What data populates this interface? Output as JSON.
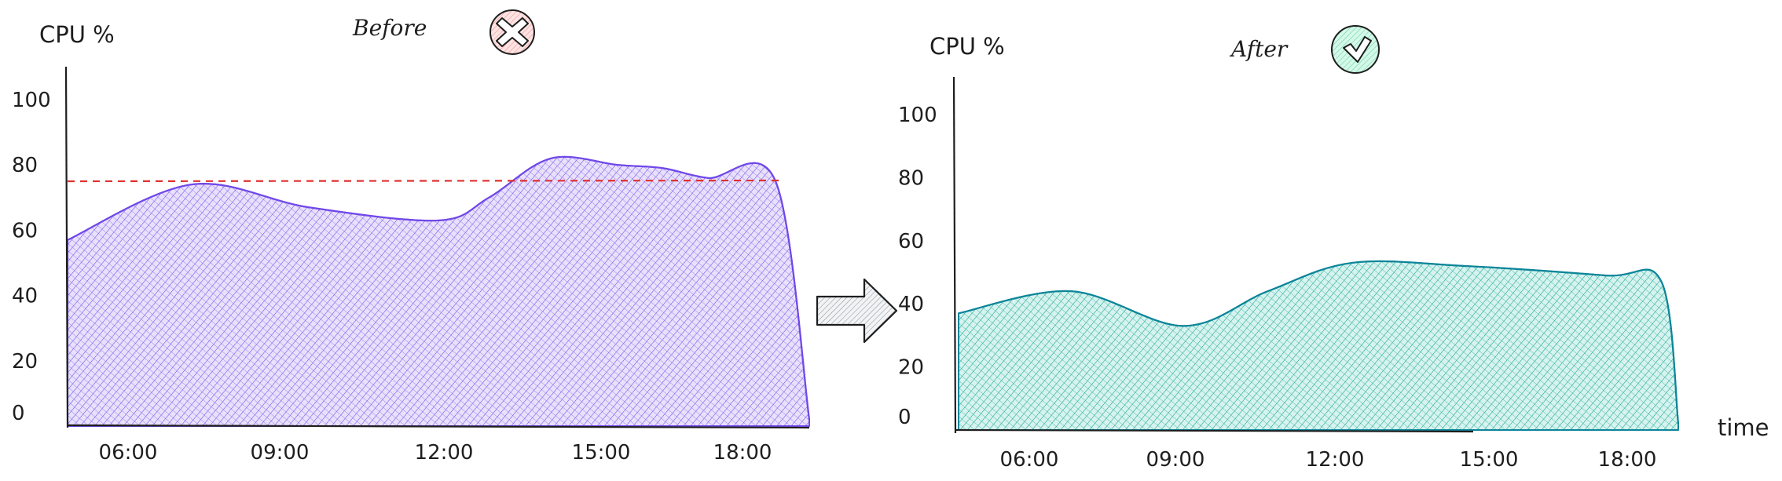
{
  "chart_data": [
    {
      "type": "area",
      "title": "Before",
      "ylabel": "CPU %",
      "xlabel": "",
      "ylim": [
        0,
        110
      ],
      "y_ticks": [
        "0",
        "20",
        "40",
        "60",
        "80",
        "100"
      ],
      "x_ticks": [
        "06:00",
        "09:00",
        "12:00",
        "15:00",
        "18:00"
      ],
      "grid": false,
      "series": [
        {
          "color": "#7048e8",
          "x": [
            0,
            2.2,
            4.3,
            6.6,
            7.5,
            8.6,
            9.8,
            10.6,
            11.4,
            12.6,
            13.2
          ],
          "values": [
            57,
            74,
            67,
            63,
            70,
            82,
            80,
            79,
            76,
            75,
            2
          ]
        }
      ],
      "threshold": {
        "value": 75,
        "color": "#e03131",
        "style": "dashed"
      },
      "badge": {
        "icon": "cross-icon",
        "color": "#e03131"
      }
    },
    {
      "type": "area",
      "title": "After",
      "ylabel": "CPU %",
      "xlabel": "time",
      "ylim": [
        0,
        110
      ],
      "y_ticks": [
        "0",
        "20",
        "40",
        "60",
        "80",
        "100"
      ],
      "x_ticks": [
        "06:00",
        "09:00",
        "12:00",
        "15:00",
        "18:00"
      ],
      "grid": false,
      "series": [
        {
          "color": "#12b886",
          "x": [
            0,
            2.0,
            4.0,
            5.5,
            7.0,
            9.0,
            11.5,
            12.5,
            12.8
          ],
          "values": [
            37,
            44,
            33,
            44,
            53,
            52,
            49,
            47,
            2
          ]
        }
      ],
      "badge": {
        "icon": "check-icon",
        "color": "#12b886"
      }
    }
  ]
}
